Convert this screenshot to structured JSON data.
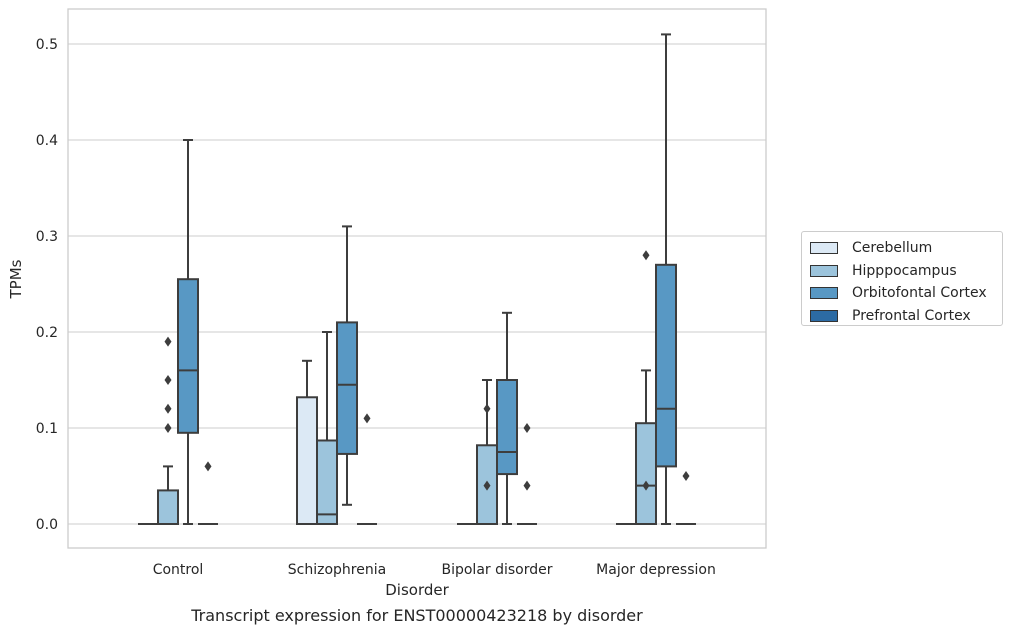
{
  "caption": "Transcript expression for ENST00000423218 by disorder",
  "chart_data": {
    "type": "box",
    "title": "",
    "xlabel": "Disorder",
    "ylabel": "TPMs",
    "ylim": [
      -0.025,
      0.535
    ],
    "yticks": [
      "0.0",
      "0.1",
      "0.2",
      "0.3",
      "0.4",
      "0.5"
    ],
    "grid": true,
    "legend_position": "right",
    "categories": [
      "Control",
      "Schizophrenia",
      "Bipolar disorder",
      "Major depression"
    ],
    "series": [
      {
        "name": "Cerebellum",
        "color": "#dce9f5",
        "boxes": [
          {
            "whislo": 0,
            "q1": 0,
            "med": 0,
            "q3": 0,
            "whishi": 0,
            "fliers": []
          },
          {
            "whislo": 0,
            "q1": 0,
            "med": 0,
            "q3": 0.132,
            "whishi": 0.17,
            "fliers": []
          },
          {
            "whislo": 0,
            "q1": 0,
            "med": 0,
            "q3": 0,
            "whishi": 0,
            "fliers": []
          },
          {
            "whislo": 0,
            "q1": 0,
            "med": 0,
            "q3": 0,
            "whishi": 0,
            "fliers": []
          }
        ]
      },
      {
        "name": "Hipppocampus",
        "color": "#9cc4dc",
        "boxes": [
          {
            "whislo": 0,
            "q1": 0,
            "med": 0,
            "q3": 0.035,
            "whishi": 0.06,
            "fliers": [
              0.1,
              0.12,
              0.15,
              0.19
            ]
          },
          {
            "whislo": 0,
            "q1": 0,
            "med": 0.01,
            "q3": 0.087,
            "whishi": 0.2,
            "fliers": []
          },
          {
            "whislo": 0,
            "q1": 0,
            "med": 0,
            "q3": 0.082,
            "whishi": 0.15,
            "fliers": [
              0.04,
              0.12
            ]
          },
          {
            "whislo": 0,
            "q1": 0,
            "med": 0.04,
            "q3": 0.105,
            "whishi": 0.16,
            "fliers": [
              0.04,
              0.28
            ]
          }
        ]
      },
      {
        "name": "Orbitofontal Cortex",
        "color": "#5898c4",
        "boxes": [
          {
            "whislo": 0,
            "q1": 0.095,
            "med": 0.16,
            "q3": 0.255,
            "whishi": 0.4,
            "fliers": []
          },
          {
            "whislo": 0.02,
            "q1": 0.073,
            "med": 0.145,
            "q3": 0.21,
            "whishi": 0.31,
            "fliers": []
          },
          {
            "whislo": 0,
            "q1": 0.052,
            "med": 0.075,
            "q3": 0.15,
            "whishi": 0.22,
            "fliers": []
          },
          {
            "whislo": 0,
            "q1": 0.06,
            "med": 0.12,
            "q3": 0.27,
            "whishi": 0.51,
            "fliers": []
          }
        ]
      },
      {
        "name": "Prefrontal Cortex",
        "color": "#2c6ba4",
        "boxes": [
          {
            "whislo": 0,
            "q1": 0,
            "med": 0,
            "q3": 0,
            "whishi": 0,
            "fliers": [
              0.06
            ]
          },
          {
            "whislo": 0,
            "q1": 0,
            "med": 0,
            "q3": 0,
            "whishi": 0,
            "fliers": [
              0.11
            ]
          },
          {
            "whislo": 0,
            "q1": 0,
            "med": 0,
            "q3": 0,
            "whishi": 0,
            "fliers": [
              0.04,
              0.1
            ]
          },
          {
            "whislo": 0,
            "q1": 0,
            "med": 0,
            "q3": 0,
            "whishi": 0,
            "fliers": [
              0.05
            ]
          }
        ]
      }
    ]
  }
}
